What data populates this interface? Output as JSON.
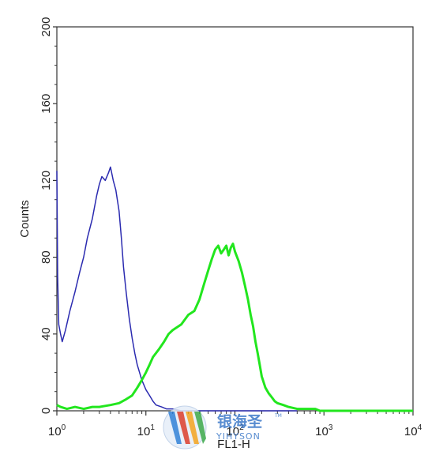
{
  "chart_data": {
    "type": "line",
    "title": "",
    "xlabel": "FL1-H",
    "ylabel": "Counts",
    "xscale": "log",
    "xlim": [
      1,
      10000
    ],
    "ylim": [
      0,
      200
    ],
    "x_ticks": [
      {
        "value": 1,
        "base": "10",
        "exp": "0"
      },
      {
        "value": 10,
        "base": "10",
        "exp": "1"
      },
      {
        "value": 100,
        "base": "10",
        "exp": "2"
      },
      {
        "value": 1000,
        "base": "10",
        "exp": "3"
      },
      {
        "value": 10000,
        "base": "10",
        "exp": "4"
      }
    ],
    "y_ticks": [
      0,
      40,
      80,
      120,
      160,
      200
    ],
    "grid": false,
    "legend": "none",
    "series": [
      {
        "color": "#2b2bb0",
        "x": [
          1.0,
          1.02,
          1.05,
          1.1,
          1.15,
          1.25,
          1.4,
          1.6,
          1.8,
          2.0,
          2.2,
          2.5,
          2.8,
          3.0,
          3.2,
          3.5,
          3.8,
          4.0,
          4.3,
          4.6,
          5.0,
          5.3,
          5.6,
          6.0,
          6.5,
          7.0,
          7.5,
          8.0,
          9.0,
          10.0,
          11.0,
          12.0,
          13.0,
          15.0,
          17.0,
          20.0,
          25.0,
          30.0,
          40.0,
          60.0,
          100.0,
          200.0,
          500.0
        ],
        "y": [
          125,
          70,
          45,
          40,
          36,
          42,
          52,
          62,
          72,
          80,
          90,
          100,
          112,
          118,
          122,
          120,
          124,
          127,
          120,
          115,
          104,
          90,
          75,
          62,
          48,
          38,
          30,
          24,
          16,
          11,
          8,
          5,
          3,
          2,
          1,
          1,
          0,
          0,
          0,
          0,
          0,
          0,
          0
        ]
      },
      {
        "color": "#22e61e",
        "x": [
          1.0,
          1.1,
          1.3,
          1.6,
          2.0,
          2.5,
          3.0,
          4.0,
          5.0,
          6.0,
          7.0,
          8.0,
          9.0,
          10.0,
          11.0,
          12.0,
          14.0,
          16.0,
          18.0,
          20.0,
          25.0,
          30.0,
          35.0,
          40.0,
          45.0,
          50.0,
          55.0,
          60.0,
          65.0,
          70.0,
          75.0,
          80.0,
          85.0,
          90.0,
          95.0,
          100.0,
          110.0,
          120.0,
          130.0,
          140.0,
          150.0,
          160.0,
          170.0,
          180.0,
          190.0,
          200.0,
          220.0,
          240.0,
          260.0,
          280.0,
          300.0,
          350.0,
          400.0,
          500.0,
          600.0,
          700.0,
          800.0,
          900.0,
          1000.0,
          1500.0,
          2000.0,
          3000.0,
          5000.0,
          10000.0
        ],
        "y": [
          3,
          2,
          1,
          2,
          1,
          2,
          2,
          3,
          4,
          6,
          8,
          12,
          16,
          20,
          24,
          28,
          32,
          36,
          40,
          42,
          45,
          50,
          52,
          58,
          66,
          73,
          79,
          84,
          86,
          82,
          84,
          86,
          81,
          85,
          87,
          83,
          78,
          72,
          65,
          58,
          50,
          44,
          36,
          30,
          24,
          18,
          12,
          9,
          7,
          5,
          4,
          3,
          2,
          1,
          1,
          1,
          1,
          0,
          0,
          0,
          0,
          0,
          0,
          0
        ]
      }
    ]
  },
  "watermark": {
    "brand_cn": "银海圣",
    "brand_en": "YIHYSON",
    "tm": "TM"
  }
}
